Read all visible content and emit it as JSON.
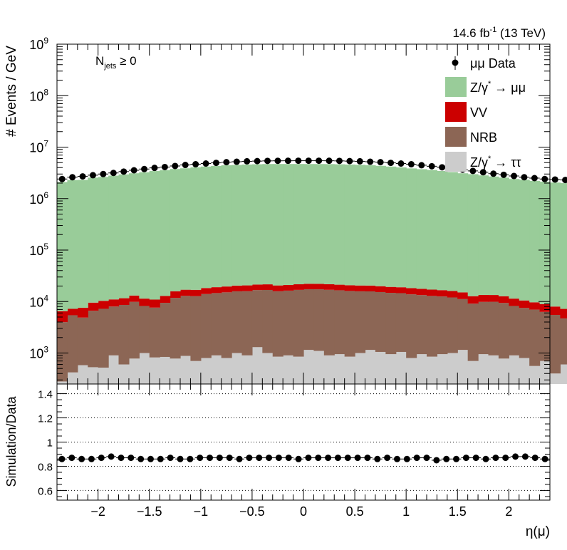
{
  "chart_data": [
    {
      "type": "bar",
      "stacked": true,
      "ylabel": "# Events / GeV",
      "yscale": "log",
      "ylim": [
        250,
        1000000000
      ],
      "xlim": [
        -2.4,
        2.4
      ],
      "y_tick_labels": [
        {
          "base": "10",
          "exp": "3"
        },
        {
          "base": "10",
          "exp": "4"
        },
        {
          "base": "10",
          "exp": "5"
        },
        {
          "base": "10",
          "exp": "6"
        },
        {
          "base": "10",
          "exp": "7"
        },
        {
          "base": "10",
          "exp": "8"
        },
        {
          "base": "10",
          "exp": "9"
        }
      ],
      "lumi_label": {
        "main": "14.6 fb",
        "sup": "-1",
        "tail": " (13 TeV)"
      },
      "category_label": {
        "main": "N",
        "sub": "jets",
        "tail": " ≥ 0"
      },
      "legend_position": "top-right",
      "legend": [
        {
          "id": "data",
          "label": "μμ Data",
          "marker": "point"
        },
        {
          "id": "dy_mumu",
          "label": {
            "a": "Z/γ",
            "sup": "*",
            "b": " → μμ"
          },
          "color": "#99cc99"
        },
        {
          "id": "vv",
          "label": "VV",
          "color": "#cc0000"
        },
        {
          "id": "nrb",
          "label": "NRB",
          "color": "#8c6655"
        },
        {
          "id": "dy_tautau",
          "label": {
            "a": "Z/γ",
            "sup": "*",
            "b": " → ττ"
          },
          "color": "#cccccc"
        }
      ],
      "bin_edges_start": -2.4,
      "bin_width": 0.1,
      "stack_order": [
        "dy_tautau",
        "nrb",
        "vv",
        "dy_mumu"
      ],
      "series": [
        {
          "name": "Z/γ* → ττ",
          "id": "dy_tautau",
          "values": [
            280,
            420,
            580,
            530,
            520,
            900,
            600,
            780,
            1000,
            820,
            840,
            780,
            880,
            700,
            800,
            900,
            800,
            1000,
            900,
            1300,
            1000,
            850,
            900,
            850,
            1150,
            1100,
            900,
            950,
            850,
            1000,
            1150,
            1050,
            950,
            1050,
            800,
            950,
            850,
            950,
            1000,
            1150,
            700,
            950,
            900,
            780,
            900,
            800,
            560,
            700,
            400,
            600
          ]
        },
        {
          "name": "NRB",
          "id": "nrb",
          "values": [
            3700,
            5000,
            4300,
            6100,
            6700,
            7100,
            8000,
            9100,
            7200,
            6800,
            8600,
            11000,
            12000,
            12000,
            13200,
            13700,
            14300,
            14800,
            15000,
            15400,
            15800,
            15000,
            15400,
            16000,
            16200,
            16200,
            16000,
            15600,
            15200,
            14800,
            14600,
            14200,
            13800,
            13500,
            13000,
            12400,
            12000,
            11600,
            11000,
            10000,
            8400,
            8900,
            9000,
            8600,
            7300,
            6700,
            6400,
            5600,
            5100,
            4100
          ]
        },
        {
          "name": "VV",
          "id": "vv",
          "values": [
            2500,
            1800,
            2700,
            2900,
            3100,
            3000,
            3000,
            3200,
            3200,
            3300,
            3400,
            4000,
            4100,
            4200,
            4300,
            4400,
            4500,
            4600,
            4700,
            4700,
            4800,
            4700,
            4700,
            4800,
            4800,
            4800,
            4800,
            4700,
            4700,
            4700,
            4700,
            4600,
            4500,
            4400,
            4400,
            4300,
            4200,
            4100,
            4000,
            3900,
            3600,
            3600,
            3500,
            3300,
            3200,
            3000,
            2700,
            2600,
            2500,
            2500
          ]
        },
        {
          "name": "Z/γ* → μμ",
          "id": "dy_mumu",
          "values": [
            2090000,
            2280000,
            2300000,
            2540000,
            2620000,
            2780000,
            2940000,
            3090000,
            3230000,
            3420000,
            3540000,
            3740000,
            3860000,
            4030000,
            4170000,
            4290000,
            4420000,
            4480000,
            4570000,
            4620000,
            4670000,
            4680000,
            4680000,
            4680000,
            4670000,
            4670000,
            4660000,
            4620000,
            4570000,
            4510000,
            4430000,
            4310000,
            4170000,
            4020000,
            3840000,
            3710000,
            3580000,
            3420000,
            3260000,
            3090000,
            2970000,
            2810000,
            2670000,
            2540000,
            2390000,
            2310000,
            2200000,
            2120000,
            2040000,
            1990000
          ]
        },
        {
          "name": "μμ Data",
          "id": "data",
          "values": [
            2400000,
            2600000,
            2700000,
            2850000,
            3000000,
            3150000,
            3350000,
            3550000,
            3750000,
            3950000,
            4100000,
            4300000,
            4500000,
            4650000,
            4800000,
            4950000,
            5100000,
            5200000,
            5300000,
            5350000,
            5400000,
            5420000,
            5430000,
            5440000,
            5440000,
            5440000,
            5430000,
            5400000,
            5350000,
            5300000,
            5200000,
            5100000,
            4950000,
            4800000,
            4650000,
            4450000,
            4250000,
            4050000,
            3850000,
            3650000,
            3450000,
            3250000,
            3050000,
            2900000,
            2750000,
            2600000,
            2500000,
            2400000,
            2350000,
            2300000
          ]
        }
      ]
    },
    {
      "type": "scatter",
      "ylabel": "Simulation/Data",
      "xlabel": "η(μ)",
      "ylim": [
        0.52,
        1.48
      ],
      "xlim": [
        -2.4,
        2.4
      ],
      "y_ticks": [
        "0.6",
        "0.8",
        "1",
        "1.2",
        "1.4"
      ],
      "x_ticks": [
        "−2",
        "−1.5",
        "−1",
        "−0.5",
        "0",
        "0.5",
        "1",
        "1.5",
        "2"
      ],
      "grid": "horizontal dotted",
      "series": [
        {
          "values": [
            0.86,
            0.87,
            0.86,
            0.86,
            0.87,
            0.88,
            0.87,
            0.87,
            0.86,
            0.86,
            0.86,
            0.87,
            0.86,
            0.86,
            0.87,
            0.87,
            0.87,
            0.87,
            0.86,
            0.87,
            0.87,
            0.87,
            0.87,
            0.87,
            0.86,
            0.87,
            0.87,
            0.87,
            0.87,
            0.87,
            0.87,
            0.87,
            0.86,
            0.87,
            0.86,
            0.86,
            0.87,
            0.87,
            0.85,
            0.86,
            0.86,
            0.87,
            0.87,
            0.86,
            0.87,
            0.87,
            0.88,
            0.88,
            0.87,
            0.86
          ]
        }
      ]
    }
  ]
}
